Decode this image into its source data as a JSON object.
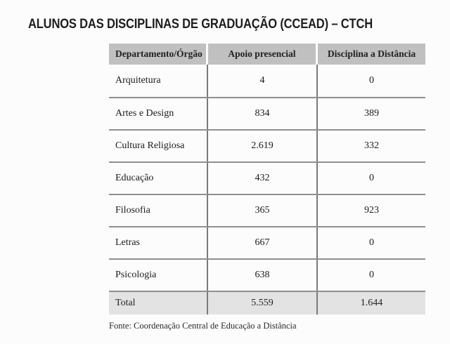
{
  "title": "ALUNOS DAS DISCIPLINAS DE GRADUAÇÃO (CCEAD) – CTCH",
  "table": {
    "headers": [
      "Departamento/Órgão",
      "Apoio presencial",
      "Disciplina a Distância"
    ],
    "rows": [
      {
        "dept": "Arquitetura",
        "presencial": "4",
        "distancia": "0"
      },
      {
        "dept": "Artes e Design",
        "presencial": "834",
        "distancia": "389"
      },
      {
        "dept": "Cultura Religiosa",
        "presencial": "2.619",
        "distancia": "332"
      },
      {
        "dept": "Educação",
        "presencial": "432",
        "distancia": "0"
      },
      {
        "dept": "Filosofia",
        "presencial": "365",
        "distancia": "923"
      },
      {
        "dept": "Letras",
        "presencial": "667",
        "distancia": "0"
      },
      {
        "dept": "Psicologia",
        "presencial": "638",
        "distancia": "0"
      }
    ],
    "total": {
      "label": "Total",
      "presencial": "5.559",
      "distancia": "1.644"
    }
  },
  "footer": {
    "source": "Fonte: Coordenação Central de Educação a Distância"
  },
  "colors": {
    "header_bg": "#c1c0c1",
    "total_bg": "#e4e3e4",
    "horizontal_line": "#8f8f8f",
    "vertical_line": "#7a7a7a",
    "text": "#1d1d1d"
  }
}
